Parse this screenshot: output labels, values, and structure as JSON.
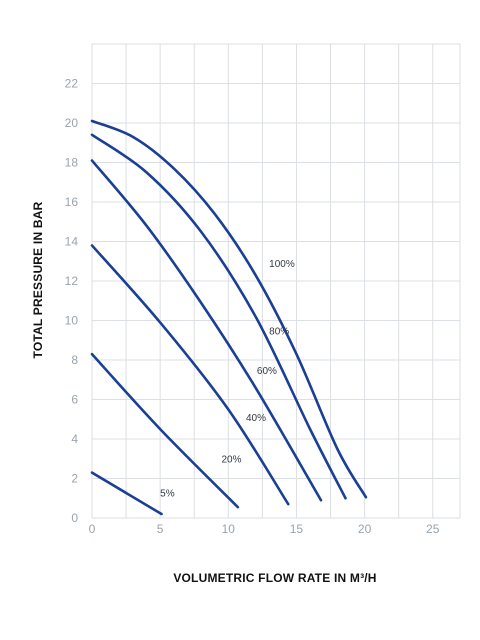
{
  "chart_data": {
    "type": "line",
    "xlabel": "VOLUMETRIC FLOW RATE IN M³/H",
    "ylabel": "TOTAL PRESSURE IN BAR",
    "xlim": [
      0,
      27
    ],
    "ylim": [
      0,
      24
    ],
    "x_ticks": [
      0,
      5,
      10,
      15,
      20,
      25
    ],
    "y_ticks": [
      0,
      2,
      4,
      6,
      8,
      10,
      12,
      14,
      16,
      18,
      20,
      22
    ],
    "grid": true,
    "line_color": "#1a3f94",
    "series": [
      {
        "name": "5%",
        "label_at": [
          5.0,
          1.1
        ],
        "points": [
          [
            0,
            2.3
          ],
          [
            5.1,
            0.2
          ]
        ]
      },
      {
        "name": "20%",
        "label_at": [
          9.5,
          2.8
        ],
        "points": [
          [
            0,
            8.3
          ],
          [
            5,
            4.5
          ],
          [
            10.7,
            0.55
          ]
        ]
      },
      {
        "name": "40%",
        "label_at": [
          11.3,
          4.9
        ],
        "points": [
          [
            0,
            13.8
          ],
          [
            5,
            9.9
          ],
          [
            10,
            5.5
          ],
          [
            14.4,
            0.7
          ]
        ]
      },
      {
        "name": "60%",
        "label_at": [
          12.1,
          7.3
        ],
        "points": [
          [
            0,
            18.1
          ],
          [
            4,
            14.8
          ],
          [
            8,
            10.9
          ],
          [
            12,
            6.6
          ],
          [
            16.8,
            0.9
          ]
        ]
      },
      {
        "name": "80%",
        "label_at": [
          13.0,
          9.3
        ],
        "points": [
          [
            0,
            19.4
          ],
          [
            4,
            17.5
          ],
          [
            8,
            14.5
          ],
          [
            12,
            10.2
          ],
          [
            16,
            4.5
          ],
          [
            18.6,
            1.0
          ]
        ]
      },
      {
        "name": "100%",
        "label_at": [
          13.0,
          12.7
        ],
        "points": [
          [
            0,
            20.1
          ],
          [
            3,
            19.3
          ],
          [
            6,
            17.7
          ],
          [
            9,
            15.4
          ],
          [
            12,
            12.3
          ],
          [
            15,
            8.3
          ],
          [
            18,
            3.5
          ],
          [
            20.1,
            1.05
          ]
        ]
      }
    ]
  }
}
